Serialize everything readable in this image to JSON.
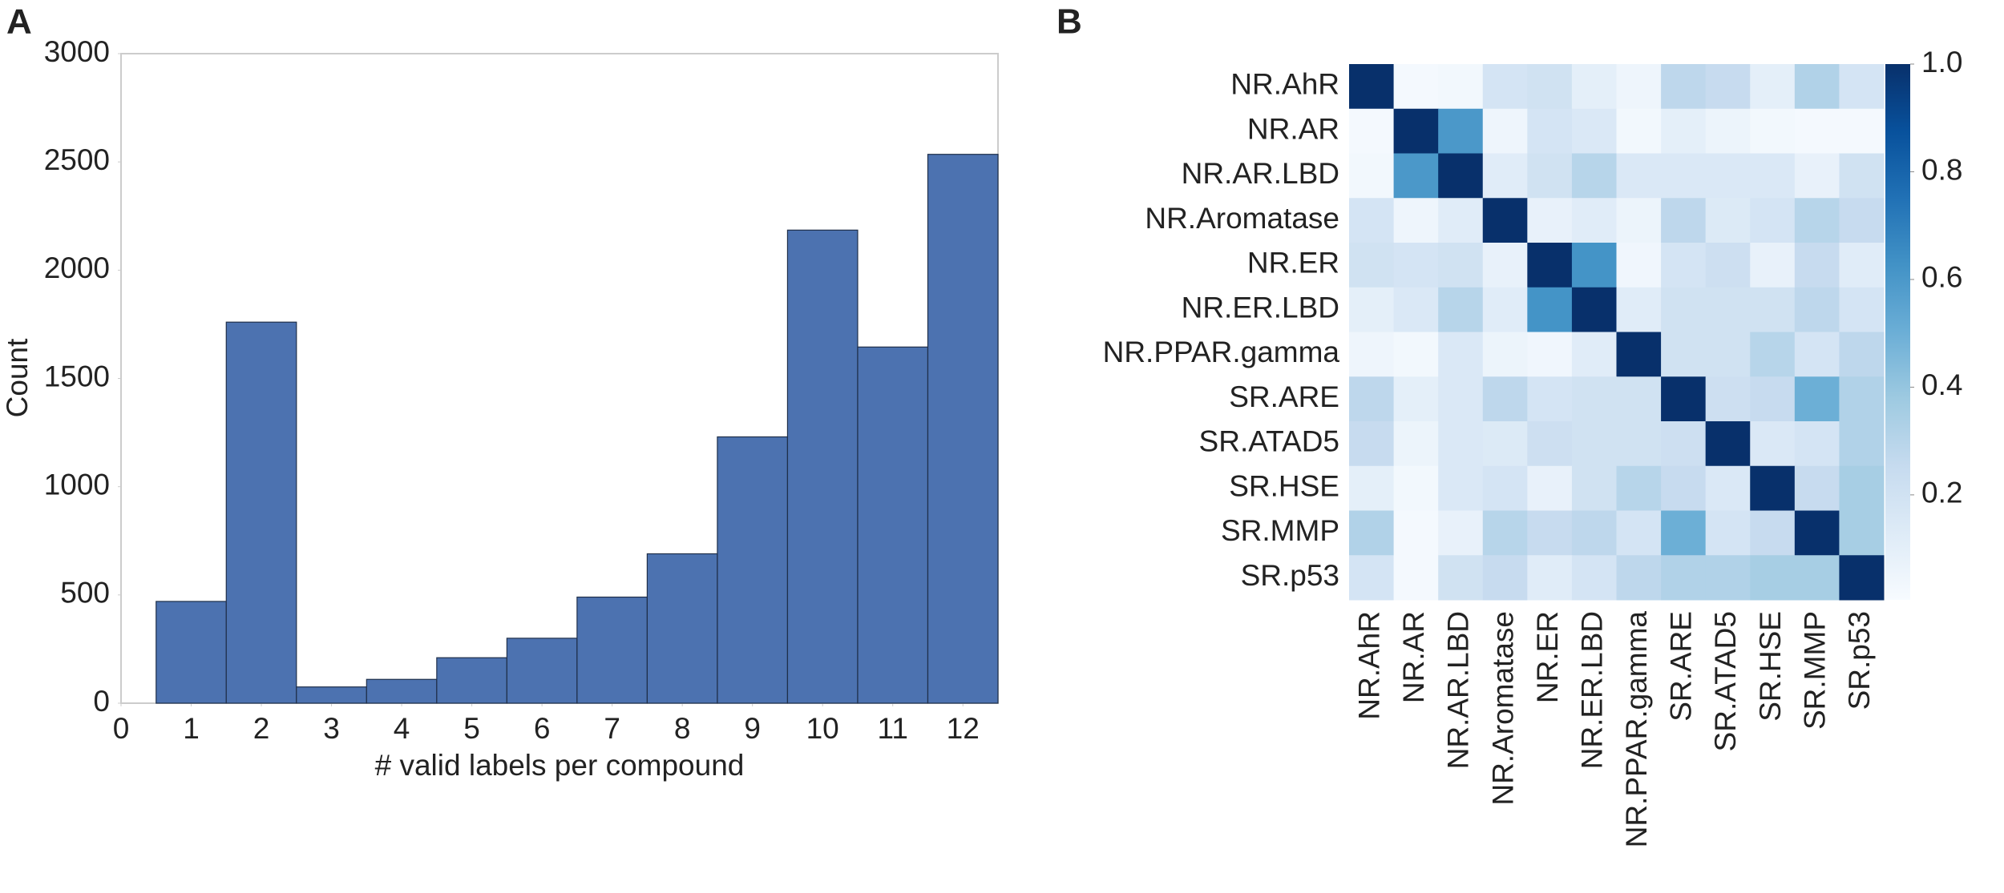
{
  "chart_data": [
    {
      "type": "histogram",
      "panel_label": "A",
      "x_label": "# valid labels per compound",
      "y_label": "Count",
      "bins": [
        0.5,
        1.5,
        2.5,
        3.5,
        4.5,
        5.5,
        6.5,
        7.5,
        8.5,
        9.5,
        10.5,
        11.5,
        12.5
      ],
      "values": [
        470,
        1760,
        75,
        110,
        210,
        300,
        490,
        690,
        1230,
        2185,
        1645,
        2535
      ],
      "color": "#4c72b0",
      "xlim": [
        0,
        12.5
      ],
      "xticks": [
        0,
        1,
        2,
        3,
        4,
        5,
        6,
        7,
        8,
        9,
        10,
        11,
        12
      ],
      "ylim": [
        0,
        3000
      ],
      "yticks": [
        0,
        500,
        1000,
        1500,
        2000,
        2500,
        3000
      ]
    },
    {
      "type": "heatmap",
      "panel_label": "B",
      "rows": [
        "NR.AhR",
        "NR.AR",
        "NR.AR.LBD",
        "NR.Aromatase",
        "NR.ER",
        "NR.ER.LBD",
        "NR.PPAR.gamma",
        "SR.ARE",
        "SR.ATAD5",
        "SR.HSE",
        "SR.MMP",
        "SR.p53"
      ],
      "columns": [
        "NR.AhR",
        "NR.AR",
        "NR.AR.LBD",
        "NR.Aromatase",
        "NR.ER",
        "NR.ER.LBD",
        "NR.PPAR.gamma",
        "SR.ARE",
        "SR.ATAD5",
        "SR.HSE",
        "SR.MMP",
        "SR.p53"
      ],
      "values": [
        [
          1,
          0.02,
          0.03,
          0.18,
          0.2,
          0.1,
          0.05,
          0.28,
          0.25,
          0.1,
          0.32,
          0.18
        ],
        [
          0.02,
          1,
          0.6,
          0.05,
          0.18,
          0.15,
          0.03,
          0.1,
          0.06,
          0.03,
          0.02,
          0.02
        ],
        [
          0.03,
          0.6,
          1,
          0.12,
          0.2,
          0.3,
          0.15,
          0.15,
          0.15,
          0.15,
          0.08,
          0.2
        ],
        [
          0.18,
          0.05,
          0.12,
          1,
          0.08,
          0.12,
          0.06,
          0.28,
          0.14,
          0.18,
          0.3,
          0.25
        ],
        [
          0.2,
          0.18,
          0.2,
          0.08,
          1,
          0.62,
          0.04,
          0.18,
          0.22,
          0.08,
          0.25,
          0.12
        ],
        [
          0.1,
          0.15,
          0.3,
          0.12,
          0.62,
          1,
          0.12,
          0.2,
          0.2,
          0.2,
          0.28,
          0.18
        ],
        [
          0.05,
          0.03,
          0.15,
          0.06,
          0.04,
          0.12,
          1,
          0.2,
          0.2,
          0.3,
          0.18,
          0.28
        ],
        [
          0.28,
          0.1,
          0.15,
          0.28,
          0.18,
          0.2,
          0.2,
          1,
          0.22,
          0.25,
          0.5,
          0.32
        ],
        [
          0.25,
          0.06,
          0.15,
          0.14,
          0.22,
          0.2,
          0.2,
          0.22,
          1,
          0.15,
          0.18,
          0.32
        ],
        [
          0.1,
          0.03,
          0.15,
          0.18,
          0.08,
          0.2,
          0.3,
          0.25,
          0.15,
          1,
          0.25,
          0.35
        ],
        [
          0.32,
          0.02,
          0.08,
          0.3,
          0.25,
          0.28,
          0.18,
          0.5,
          0.18,
          0.25,
          1,
          0.35
        ],
        [
          0.18,
          0.02,
          0.2,
          0.25,
          0.12,
          0.18,
          0.28,
          0.32,
          0.32,
          0.35,
          0.35,
          1
        ]
      ],
      "clim": [
        0.005,
        1
      ],
      "colormap": [
        "#f7fbff",
        "#deebf7",
        "#c6dbef",
        "#9ecae1",
        "#6baed6",
        "#4292c6",
        "#2171b5",
        "#08519c",
        "#08306b"
      ],
      "colorbar_ticks": [
        0.2,
        0.4,
        0.6,
        0.8,
        {
          "value": 1,
          "label": "1.0"
        }
      ]
    }
  ]
}
